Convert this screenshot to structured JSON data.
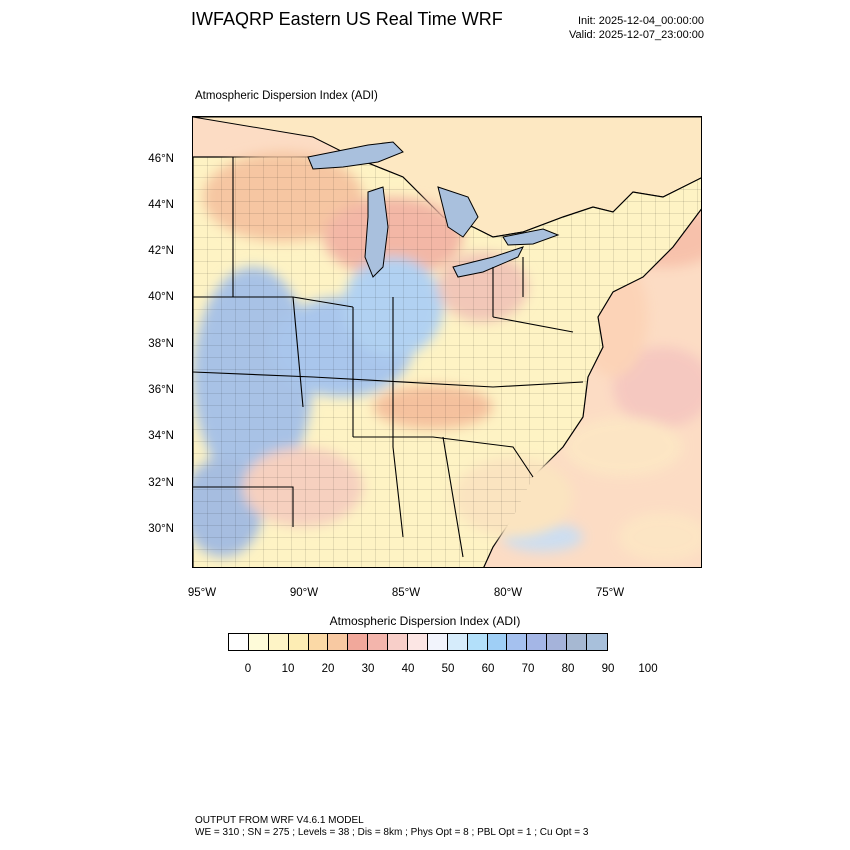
{
  "header": {
    "title": "IWFAQRP Eastern US Real Time WRF",
    "init": "Init: 2025-12-04_00:00:00",
    "valid": "Valid: 2025-12-07_23:00:00"
  },
  "map": {
    "subtitle": "Atmospheric Dispersion Index   (ADI)",
    "lat_labels": [
      "46°N",
      "44°N",
      "42°N",
      "40°N",
      "38°N",
      "36°N",
      "34°N",
      "32°N",
      "30°N"
    ],
    "lon_labels": [
      "95°W",
      "90°W",
      "85°W",
      "80°W",
      "75°W"
    ],
    "colors": {
      "land_low": "#fef5c5",
      "land_mid": "#f8c9a4",
      "land_high": "#a8c2e6",
      "water_lake": "#a9c0dd",
      "ocean": "#fcdcc4"
    }
  },
  "colorbar": {
    "title": "Atmospheric Dispersion Index  (ADI)",
    "colors": [
      "#ffffff",
      "#fefbd9",
      "#fef4c6",
      "#fdedb4",
      "#fbd9a6",
      "#f8c9a2",
      "#f1a89b",
      "#f3b5ac",
      "#f8cfc9",
      "#fce6e4",
      "#f2f4fc",
      "#d6ecfb",
      "#b3e0fa",
      "#9fcff6",
      "#a5c1ef",
      "#a4b6e6",
      "#a5b3da",
      "#a6b8d2",
      "#a8c0db"
    ],
    "tick_labels": [
      "0",
      "10",
      "20",
      "30",
      "40",
      "50",
      "60",
      "70",
      "80",
      "90",
      "100"
    ]
  },
  "footer": {
    "line1": "OUTPUT FROM WRF V4.6.1 MODEL",
    "line2": "WE = 310 ; SN = 275 ; Levels = 38 ; Dis = 8km ; Phys Opt = 8 ; PBL Opt = 1 ; Cu Opt = 3"
  }
}
